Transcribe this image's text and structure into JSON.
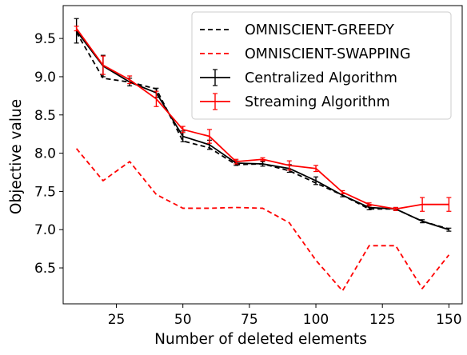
{
  "chart_data": {
    "type": "line",
    "xlabel": "Number of deleted elements",
    "ylabel": "Objective value",
    "xlim": [
      5,
      155
    ],
    "ylim": [
      6.03,
      9.93
    ],
    "x_ticks": [
      25,
      50,
      75,
      100,
      125,
      150
    ],
    "y_ticks": [
      6.5,
      7.0,
      7.5,
      8.0,
      8.5,
      9.0,
      9.5
    ],
    "x_tick_labels": [
      "25",
      "50",
      "75",
      "100",
      "125",
      "150"
    ],
    "y_tick_labels": [
      "6.5",
      "7.0",
      "7.5",
      "8.0",
      "8.5",
      "9.0",
      "9.5"
    ],
    "legend_position": "top-right",
    "x": [
      10,
      20,
      30,
      40,
      50,
      60,
      70,
      80,
      90,
      100,
      110,
      120,
      130,
      140,
      150
    ],
    "series": [
      {
        "name": "OMNISCIENT-GREEDY",
        "color": "#000000",
        "style": "dashed",
        "values": [
          9.58,
          8.98,
          8.93,
          8.84,
          8.16,
          8.07,
          7.85,
          7.86,
          7.77,
          7.61,
          7.45,
          7.27,
          7.27,
          7.11,
          7.01
        ]
      },
      {
        "name": "OMNISCIENT-SWAPPING",
        "color": "#ff0000",
        "style": "dashed",
        "values": [
          8.06,
          7.64,
          7.89,
          7.46,
          7.28,
          7.28,
          7.29,
          7.28,
          7.09,
          6.6,
          6.2,
          6.79,
          6.79,
          6.23,
          6.67
        ]
      },
      {
        "name": "Centralized Algorithm",
        "color": "#000000",
        "style": "solid",
        "values": [
          9.6,
          9.14,
          8.93,
          8.79,
          8.22,
          8.11,
          7.87,
          7.86,
          7.8,
          7.64,
          7.45,
          7.29,
          7.27,
          7.11,
          7.0
        ],
        "error": [
          0.16,
          0.14,
          0.05,
          0.06,
          0.07,
          0.06,
          0.03,
          0.03,
          0.05,
          0.05,
          0.02,
          0.03,
          0.02,
          0.02,
          0.02
        ]
      },
      {
        "name": "Streaming Algorithm",
        "color": "#ff0000",
        "style": "solid",
        "values": [
          9.63,
          9.15,
          8.96,
          8.71,
          8.31,
          8.22,
          7.89,
          7.92,
          7.84,
          7.8,
          7.49,
          7.33,
          7.27,
          7.33,
          7.33
        ],
        "error": [
          0.03,
          0.12,
          0.05,
          0.1,
          0.04,
          0.09,
          0.03,
          0.02,
          0.06,
          0.04,
          0.02,
          0.02,
          0.02,
          0.09,
          0.09
        ]
      }
    ]
  }
}
